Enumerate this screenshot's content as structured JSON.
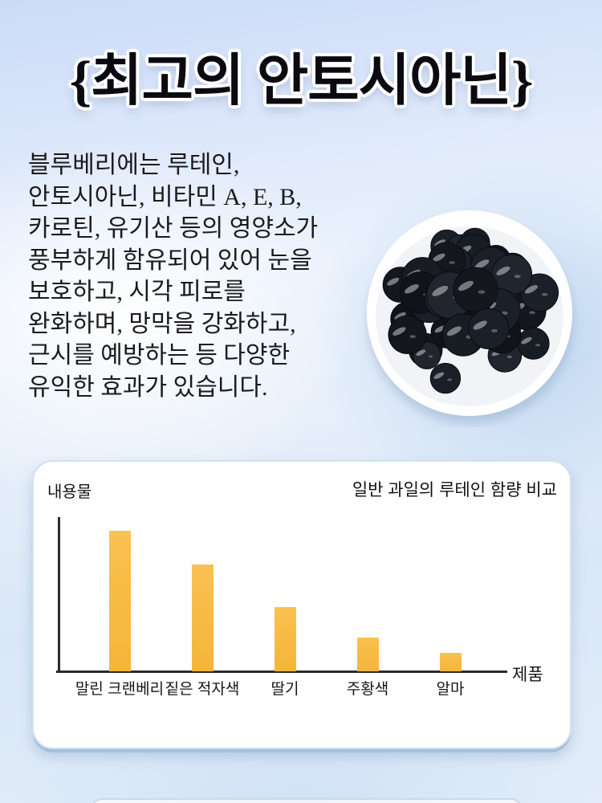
{
  "page": {
    "title": "{최고의 안토시아닌}",
    "intro_lines": [
      "블루베리에는 루테인,",
      "안토시아닌, 비타민 A, E, B,",
      "카로틴, 유기산 등의 영양소가",
      "풍부하게 함유되어 있어 눈을",
      "보호하고, 시각 피로를",
      "완화하며, 망막을 강화하고,",
      "근시를 예방하는 등 다양한",
      "유익한 효과가 있습니다."
    ]
  },
  "chart_data": {
    "type": "bar",
    "title": "일반 과일의 루테인 함량 비교",
    "ylabel": "내용물",
    "xlabel": "제품",
    "categories": [
      "말린 크랜베리",
      "짙은 적자색",
      "딸기",
      "주황색",
      "알마"
    ],
    "values": [
      100,
      76,
      46,
      24,
      13
    ],
    "ylim": [
      0,
      110
    ],
    "grid": false,
    "legend": false,
    "bar_color": "#F8BC45",
    "axis_color": "#2B2B2B"
  },
  "colors": {
    "bar_accent": "#F8BC45",
    "background_top": "#CBDCF8",
    "background_light": "#EEF5FC",
    "background_right": "#BCD6F1",
    "card_border": "#A9C6E2",
    "title_text": "#0A0A10"
  }
}
